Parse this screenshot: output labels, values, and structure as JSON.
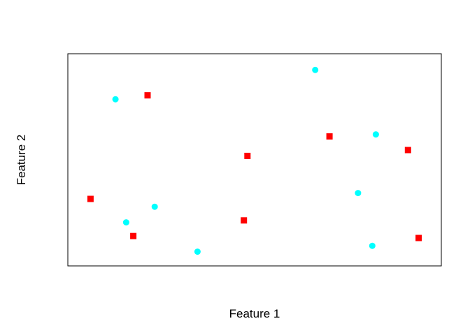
{
  "chart_data": {
    "type": "scatter",
    "title": "",
    "xlabel": "Feature 1",
    "ylabel": "Feature 2",
    "xlim": [
      0,
      1
    ],
    "ylim": [
      0,
      1
    ],
    "axes_drawn": false,
    "tick_labels": false,
    "grid": false,
    "legend": "none",
    "series": [
      {
        "color": "#00FFFF",
        "marker": "circle",
        "points": [
          {
            "x": 0.11,
            "y": 0.81
          },
          {
            "x": 0.14,
            "y": 0.18
          },
          {
            "x": 0.22,
            "y": 0.26
          },
          {
            "x": 0.34,
            "y": 0.03
          },
          {
            "x": 0.67,
            "y": 0.96
          },
          {
            "x": 0.84,
            "y": 0.63
          },
          {
            "x": 0.79,
            "y": 0.33
          },
          {
            "x": 0.83,
            "y": 0.06
          }
        ]
      },
      {
        "color": "#FF0000",
        "marker": "square",
        "points": [
          {
            "x": 0.04,
            "y": 0.3
          },
          {
            "x": 0.2,
            "y": 0.83
          },
          {
            "x": 0.16,
            "y": 0.11
          },
          {
            "x": 0.48,
            "y": 0.52
          },
          {
            "x": 0.47,
            "y": 0.19
          },
          {
            "x": 0.71,
            "y": 0.62
          },
          {
            "x": 0.93,
            "y": 0.55
          },
          {
            "x": 0.96,
            "y": 0.1
          }
        ]
      }
    ]
  }
}
